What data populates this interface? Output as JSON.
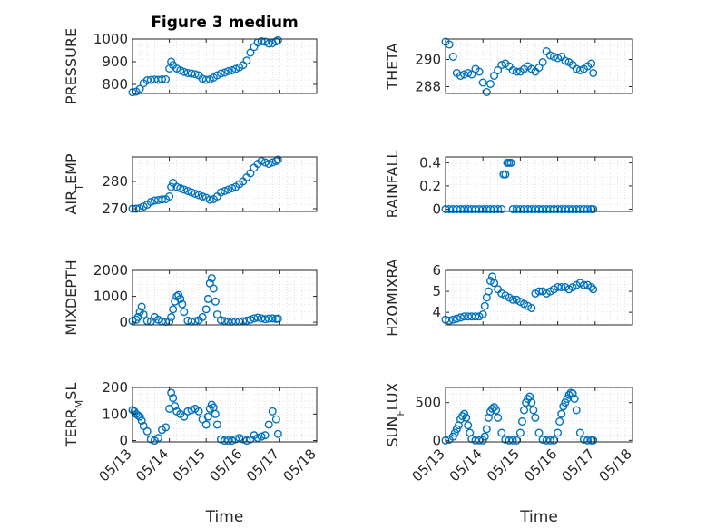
{
  "chart_data": [
    {
      "type": "scatter",
      "title": "Figure 3 medium",
      "ylabel": "PRESSURE",
      "xlabel": "",
      "xlim": [
        "05/13",
        "05/18"
      ],
      "ylim": [
        760,
        1000
      ],
      "yticks": [
        "800",
        "900",
        "1000"
      ],
      "xticks": [],
      "grid": true,
      "series": [
        {
          "x": [
            0,
            0.1,
            0.2,
            0.3,
            0.4,
            0.5,
            0.6,
            0.7,
            0.8,
            0.9,
            1,
            1.05,
            1.1,
            1.2,
            1.3,
            1.4,
            1.5,
            1.6,
            1.7,
            1.8,
            1.9,
            2,
            2.1,
            2.2,
            2.3,
            2.4,
            2.5,
            2.6,
            2.7,
            2.8,
            2.9,
            3,
            3.1,
            3.2,
            3.3,
            3.4,
            3.5,
            3.6,
            3.7,
            3.8,
            3.9,
            3.95
          ],
          "y": [
            765,
            768,
            780,
            805,
            818,
            820,
            821,
            820,
            822,
            822,
            870,
            900,
            885,
            870,
            862,
            855,
            850,
            848,
            845,
            840,
            825,
            820,
            822,
            830,
            840,
            848,
            852,
            858,
            862,
            868,
            875,
            885,
            905,
            940,
            965,
            985,
            990,
            988,
            980,
            982,
            990,
            995
          ]
        }
      ]
    },
    {
      "type": "scatter",
      "title": "",
      "ylabel": "THETA",
      "xlabel": "",
      "xlim": [
        "05/13",
        "05/18"
      ],
      "ylim": [
        287.5,
        291.5
      ],
      "yticks": [
        "288",
        "290"
      ],
      "xticks": [],
      "grid": true,
      "series": [
        {
          "x": [
            0,
            0.1,
            0.2,
            0.3,
            0.4,
            0.5,
            0.6,
            0.7,
            0.8,
            0.9,
            1,
            1.1,
            1.2,
            1.3,
            1.4,
            1.5,
            1.6,
            1.7,
            1.8,
            1.9,
            2,
            2.1,
            2.2,
            2.3,
            2.4,
            2.5,
            2.6,
            2.7,
            2.8,
            2.9,
            3,
            3.1,
            3.2,
            3.3,
            3.4,
            3.5,
            3.6,
            3.7,
            3.8,
            3.9,
            3.95
          ],
          "y": [
            291.3,
            291.1,
            290.2,
            289.0,
            288.8,
            288.9,
            289.0,
            288.9,
            289.3,
            289.1,
            288.3,
            287.6,
            288.2,
            288.8,
            289.2,
            289.6,
            289.7,
            289.5,
            289.2,
            289.1,
            289.1,
            289.3,
            289.5,
            289.3,
            289.1,
            289.4,
            289.8,
            290.6,
            290.3,
            290.2,
            290.1,
            290.2,
            289.9,
            289.8,
            289.6,
            289.3,
            289.2,
            289.3,
            289.5,
            289.7,
            289.0
          ]
        }
      ]
    },
    {
      "type": "scatter",
      "title": "",
      "ylabel": "AIR_TEMP",
      "xlabel": "",
      "xlim": [
        "05/13",
        "05/18"
      ],
      "ylim": [
        269,
        289
      ],
      "yticks": [
        "270",
        "280"
      ],
      "xticks": [],
      "grid": true,
      "series": [
        {
          "x": [
            0,
            0.1,
            0.2,
            0.3,
            0.4,
            0.5,
            0.6,
            0.7,
            0.8,
            0.9,
            1,
            1.05,
            1.1,
            1.2,
            1.3,
            1.4,
            1.5,
            1.6,
            1.7,
            1.8,
            1.9,
            2,
            2.1,
            2.2,
            2.3,
            2.4,
            2.5,
            2.6,
            2.7,
            2.8,
            2.9,
            3,
            3.1,
            3.2,
            3.3,
            3.4,
            3.5,
            3.6,
            3.7,
            3.8,
            3.9,
            3.95
          ],
          "y": [
            270,
            270,
            270.2,
            270.8,
            271.5,
            272.5,
            273,
            273.2,
            273.4,
            273.5,
            274.5,
            278,
            279.5,
            278,
            277.5,
            277,
            276.5,
            276,
            275.5,
            275,
            274.5,
            274,
            273.3,
            273.5,
            274.5,
            276,
            276.5,
            277,
            277.5,
            278,
            279,
            280,
            281.5,
            283,
            285,
            286.5,
            287.5,
            287,
            286.5,
            287,
            287.5,
            288
          ]
        }
      ]
    },
    {
      "type": "scatter",
      "title": "",
      "ylabel": "RAINFALL",
      "xlabel": "",
      "xlim": [
        "05/13",
        "05/18"
      ],
      "ylim": [
        -0.02,
        0.45
      ],
      "yticks": [
        "0",
        "0.2",
        "0.4"
      ],
      "xticks": [],
      "grid": true,
      "series": [
        {
          "x": [
            0,
            0.1,
            0.2,
            0.3,
            0.4,
            0.5,
            0.6,
            0.7,
            0.8,
            0.9,
            1,
            1.1,
            1.2,
            1.3,
            1.4,
            1.5,
            1.55,
            1.6,
            1.65,
            1.7,
            1.75,
            1.8,
            1.9,
            2,
            2.1,
            2.2,
            2.3,
            2.4,
            2.5,
            2.6,
            2.7,
            2.8,
            2.9,
            3,
            3.1,
            3.2,
            3.3,
            3.4,
            3.5,
            3.6,
            3.7,
            3.8,
            3.9,
            3.95
          ],
          "y": [
            0,
            0,
            0,
            0,
            0,
            0,
            0,
            0,
            0,
            0,
            0,
            0,
            0,
            0,
            0,
            0,
            0.3,
            0.3,
            0.4,
            0.4,
            0.4,
            0,
            0,
            0,
            0,
            0,
            0,
            0,
            0,
            0,
            0,
            0,
            0,
            0,
            0,
            0,
            0,
            0,
            0,
            0,
            0,
            0,
            0,
            0
          ]
        }
      ]
    },
    {
      "type": "scatter",
      "title": "",
      "ylabel": "MIXDEPTH",
      "xlabel": "",
      "xlim": [
        "05/13",
        "05/18"
      ],
      "ylim": [
        -100,
        2000
      ],
      "yticks": [
        "0",
        "1000",
        "2000"
      ],
      "xticks": [],
      "grid": true,
      "series": [
        {
          "x": [
            0,
            0.1,
            0.15,
            0.2,
            0.25,
            0.3,
            0.4,
            0.5,
            0.6,
            0.7,
            0.8,
            0.9,
            1,
            1.05,
            1.1,
            1.15,
            1.2,
            1.25,
            1.3,
            1.35,
            1.4,
            1.5,
            1.6,
            1.7,
            1.8,
            1.9,
            2,
            2.05,
            2.1,
            2.15,
            2.2,
            2.25,
            2.3,
            2.4,
            2.5,
            2.6,
            2.7,
            2.8,
            2.9,
            3,
            3.1,
            3.2,
            3.3,
            3.4,
            3.5,
            3.6,
            3.7,
            3.8,
            3.9,
            3.95
          ],
          "y": [
            50,
            100,
            200,
            400,
            600,
            300,
            50,
            30,
            200,
            100,
            30,
            20,
            30,
            200,
            500,
            800,
            1000,
            1050,
            900,
            700,
            400,
            60,
            30,
            40,
            80,
            200,
            500,
            900,
            1500,
            1700,
            1300,
            800,
            300,
            80,
            50,
            30,
            30,
            30,
            30,
            40,
            60,
            100,
            150,
            180,
            150,
            120,
            140,
            150,
            130,
            140
          ]
        }
      ]
    },
    {
      "type": "scatter",
      "title": "",
      "ylabel": "H2OMIXRA",
      "xlabel": "",
      "xlim": [
        "05/13",
        "05/18"
      ],
      "ylim": [
        3.4,
        6
      ],
      "yticks": [
        "4",
        "5",
        "6"
      ],
      "xticks": [],
      "grid": true,
      "series": [
        {
          "x": [
            0,
            0.1,
            0.2,
            0.3,
            0.4,
            0.5,
            0.6,
            0.7,
            0.8,
            0.9,
            1,
            1.05,
            1.1,
            1.15,
            1.2,
            1.25,
            1.3,
            1.4,
            1.5,
            1.6,
            1.7,
            1.8,
            1.9,
            2,
            2.1,
            2.2,
            2.3,
            2.4,
            2.5,
            2.6,
            2.7,
            2.8,
            2.9,
            3,
            3.1,
            3.2,
            3.3,
            3.4,
            3.5,
            3.6,
            3.7,
            3.8,
            3.9,
            3.95
          ],
          "y": [
            3.65,
            3.6,
            3.65,
            3.7,
            3.75,
            3.8,
            3.8,
            3.8,
            3.8,
            3.8,
            3.9,
            4.3,
            4.7,
            5.0,
            5.5,
            5.7,
            5.4,
            5.1,
            4.9,
            4.8,
            4.7,
            4.6,
            4.6,
            4.5,
            4.4,
            4.3,
            4.2,
            4.9,
            5.0,
            5.0,
            4.9,
            5.0,
            5.1,
            5.2,
            5.2,
            5.2,
            5.1,
            5.2,
            5.3,
            5.4,
            5.3,
            5.3,
            5.2,
            5.1
          ]
        }
      ]
    },
    {
      "type": "scatter",
      "title": "",
      "ylabel": "TERR_MSL",
      "xlabel": "Time",
      "xlim": [
        "05/13",
        "05/18"
      ],
      "ylim": [
        -5,
        200
      ],
      "yticks": [
        "0",
        "100",
        "200"
      ],
      "xticks": [
        "05/13",
        "05/14",
        "05/15",
        "05/16",
        "05/17",
        "05/18"
      ],
      "grid": true,
      "series": [
        {
          "x": [
            0,
            0.05,
            0.1,
            0.15,
            0.2,
            0.25,
            0.3,
            0.4,
            0.5,
            0.6,
            0.7,
            0.8,
            0.9,
            1,
            1.05,
            1.1,
            1.15,
            1.2,
            1.3,
            1.4,
            1.5,
            1.6,
            1.7,
            1.8,
            1.9,
            2,
            2.05,
            2.1,
            2.15,
            2.2,
            2.25,
            2.3,
            2.4,
            2.5,
            2.6,
            2.7,
            2.8,
            2.9,
            3,
            3.1,
            3.2,
            3.3,
            3.4,
            3.5,
            3.6,
            3.7,
            3.8,
            3.9,
            3.95
          ],
          "y": [
            115,
            110,
            100,
            95,
            90,
            75,
            55,
            35,
            5,
            0,
            10,
            40,
            50,
            120,
            180,
            160,
            130,
            110,
            100,
            90,
            110,
            115,
            120,
            110,
            80,
            60,
            90,
            120,
            135,
            125,
            100,
            60,
            5,
            0,
            0,
            0,
            5,
            10,
            5,
            0,
            5,
            20,
            10,
            15,
            20,
            60,
            110,
            80,
            25
          ]
        }
      ]
    },
    {
      "type": "scatter",
      "title": "",
      "ylabel": "SUN_FLUX",
      "xlabel": "Time",
      "xlim": [
        "05/13",
        "05/18"
      ],
      "ylim": [
        -20,
        700
      ],
      "yticks": [
        "0",
        "500"
      ],
      "xticks": [
        "05/13",
        "05/14",
        "05/15",
        "05/16",
        "05/17",
        "05/18"
      ],
      "grid": true,
      "series": [
        {
          "x": [
            0,
            0.1,
            0.2,
            0.25,
            0.3,
            0.35,
            0.4,
            0.45,
            0.5,
            0.55,
            0.6,
            0.65,
            0.7,
            0.8,
            0.9,
            1,
            1.05,
            1.1,
            1.15,
            1.2,
            1.25,
            1.3,
            1.35,
            1.4,
            1.5,
            1.6,
            1.7,
            1.8,
            1.9,
            2,
            2.05,
            2.1,
            2.15,
            2.2,
            2.25,
            2.3,
            2.35,
            2.4,
            2.5,
            2.6,
            2.7,
            2.8,
            2.9,
            3,
            3.05,
            3.1,
            3.15,
            3.2,
            3.25,
            3.3,
            3.35,
            3.4,
            3.45,
            3.5,
            3.6,
            3.7,
            3.8,
            3.9,
            3.95
          ],
          "y": [
            0,
            10,
            50,
            100,
            150,
            200,
            280,
            320,
            350,
            300,
            200,
            100,
            20,
            0,
            0,
            0,
            50,
            150,
            300,
            380,
            420,
            440,
            400,
            300,
            100,
            10,
            0,
            0,
            0,
            100,
            250,
            400,
            500,
            550,
            580,
            500,
            400,
            300,
            100,
            10,
            0,
            0,
            0,
            100,
            250,
            350,
            450,
            500,
            550,
            600,
            630,
            620,
            550,
            400,
            100,
            10,
            0,
            0,
            0
          ]
        }
      ]
    }
  ]
}
